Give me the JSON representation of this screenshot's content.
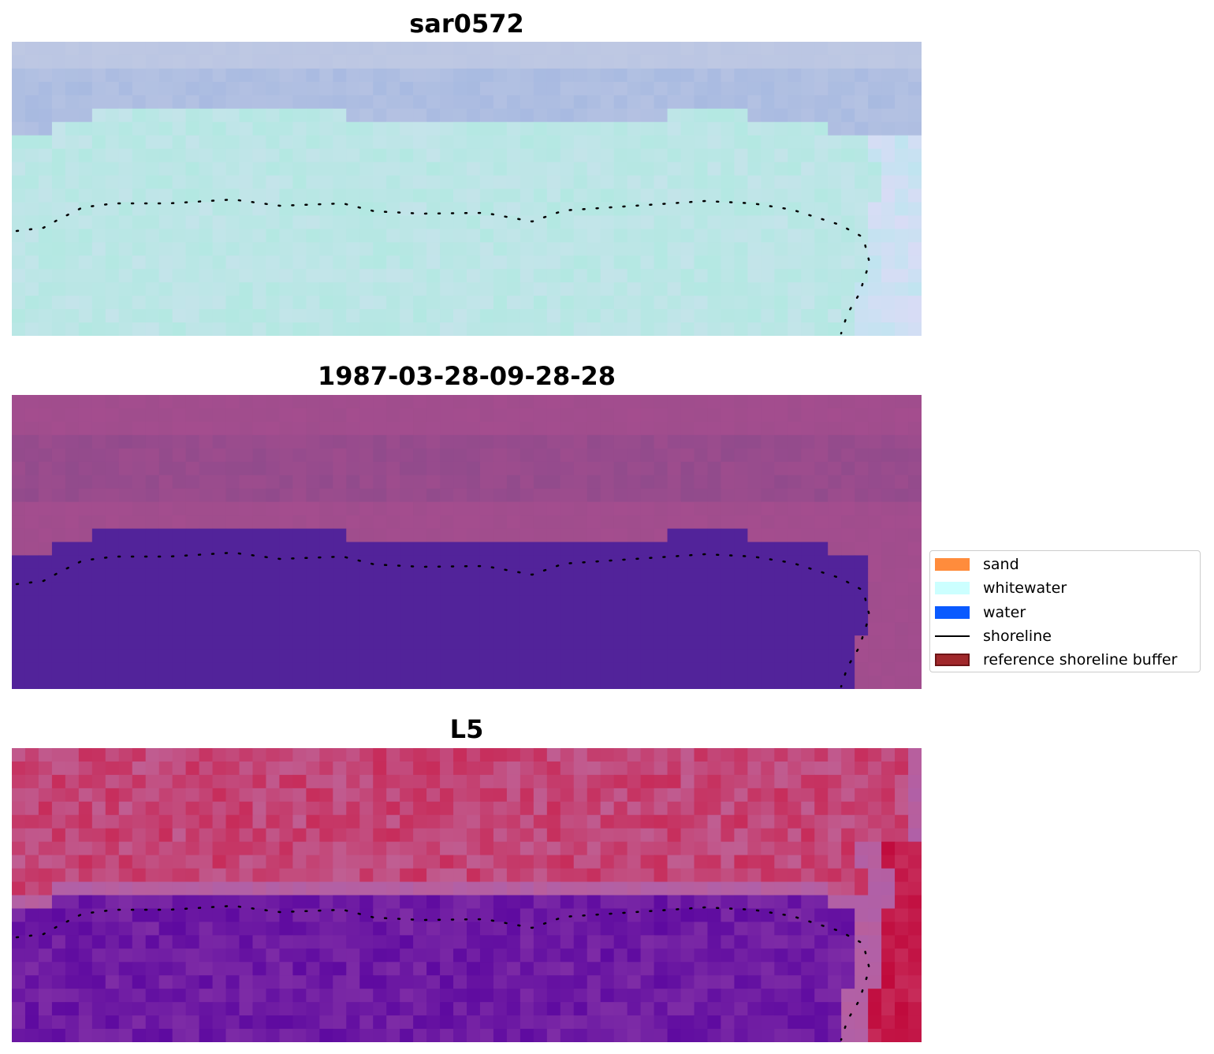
{
  "panels": [
    {
      "title": "sar0572"
    },
    {
      "title": "1987-03-28-09-28-28"
    },
    {
      "title": "L5"
    }
  ],
  "legend": {
    "items": [
      {
        "label": "sand",
        "color": "#ff8c3c",
        "kind": "patch"
      },
      {
        "label": "whitewater",
        "color": "#ccffff",
        "kind": "patch"
      },
      {
        "label": "water",
        "color": "#0a5aff",
        "kind": "patch"
      },
      {
        "label": "shoreline",
        "color": "#000000",
        "kind": "line"
      },
      {
        "label": "reference shoreline buffer",
        "color": "#a0282b",
        "border": "#6e1416",
        "kind": "patch"
      }
    ]
  },
  "colors": {
    "rgb_water": "#b3e8e2",
    "rgb_surf": "#b8c8e8",
    "classified_background": "#a4528e",
    "classified_water": "#52239a",
    "mndwi_land": "#c8385c",
    "mndwi_water": "#6a1aa0",
    "shoreline": "#000000"
  }
}
